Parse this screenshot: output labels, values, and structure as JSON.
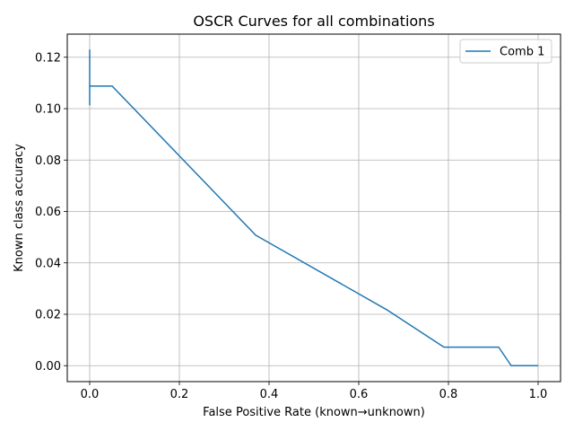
{
  "chart_data": {
    "type": "line",
    "title": "OSCR Curves for all combinations",
    "xlabel": "False Positive Rate (known→unknown)",
    "ylabel": "Known class accuracy",
    "xlim": [
      -0.05,
      1.05
    ],
    "ylim": [
      -0.0062,
      0.129
    ],
    "xticks": [
      0.0,
      0.2,
      0.4,
      0.6,
      0.8,
      1.0
    ],
    "xtick_labels": [
      "0.0",
      "0.2",
      "0.4",
      "0.6",
      "0.8",
      "1.0"
    ],
    "yticks": [
      0.0,
      0.02,
      0.04,
      0.06,
      0.08,
      0.1,
      0.12
    ],
    "ytick_labels": [
      "0.00",
      "0.02",
      "0.04",
      "0.06",
      "0.08",
      "0.10",
      "0.12"
    ],
    "grid": true,
    "legend_position": "top-right",
    "series": [
      {
        "name": "Comb 1",
        "color": "#1f77b4",
        "x": [
          0.0,
          0.0,
          0.0,
          0.0,
          0.05,
          0.37,
          0.665,
          0.79,
          0.912,
          0.94,
          1.0
        ],
        "y": [
          0.123,
          0.1015,
          0.1088,
          0.1088,
          0.1088,
          0.0508,
          0.0215,
          0.0072,
          0.0072,
          0.0,
          0.0
        ]
      }
    ]
  }
}
